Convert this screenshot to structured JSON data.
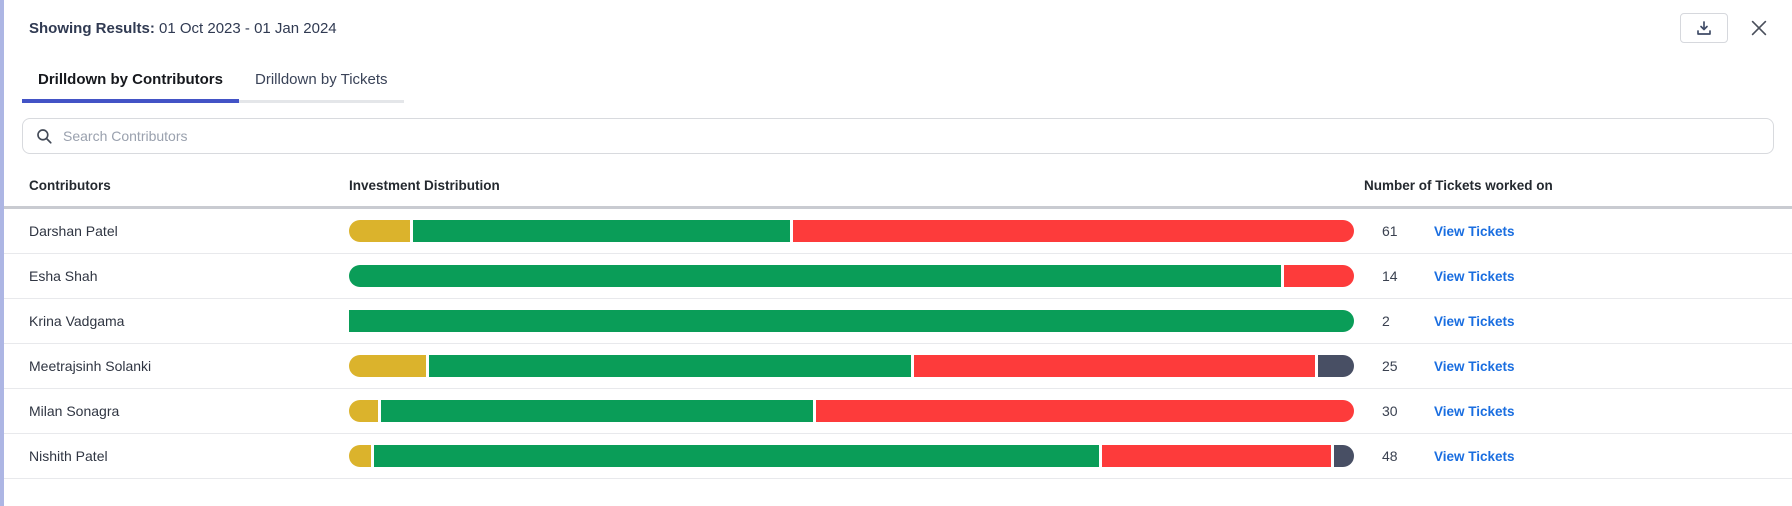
{
  "header": {
    "label": "Showing Results:",
    "value": "01 Oct 2023 - 01 Jan 2024"
  },
  "tabs": [
    {
      "label": "Drilldown by Contributors",
      "active": true
    },
    {
      "label": "Drilldown by Tickets",
      "active": false
    }
  ],
  "search": {
    "placeholder": "Search Contributors",
    "icon": "search-icon"
  },
  "table": {
    "columns": [
      "Contributors",
      "Investment Distribution",
      "Number of Tickets worked on"
    ],
    "link_label": "View Tickets"
  },
  "icons": {
    "download": "download-icon",
    "close": "close-icon"
  },
  "colors": {
    "yellow": "#dbb32c",
    "green": "#0a9d58",
    "red": "#fd3b3b",
    "slate": "#484f64",
    "accent": "#4353c6",
    "link": "#1a6ee0",
    "left_stripe": "#adb6e4"
  },
  "rows": [
    {
      "name": "Darshan Patel",
      "tickets": "61",
      "segments": [
        {
          "color": "yellow",
          "pct": 6.1
        },
        {
          "color": "green",
          "pct": 37.6
        },
        {
          "color": "red",
          "pct": 55.9
        }
      ]
    },
    {
      "name": "Esha Shah",
      "tickets": "14",
      "segments": [
        {
          "color": "green",
          "pct": 92.6
        },
        {
          "color": "red",
          "pct": 7.0
        }
      ]
    },
    {
      "name": "Krina Vadgama",
      "tickets": "2",
      "segments": [
        {
          "color": "green",
          "pct": 100
        }
      ]
    },
    {
      "name": "Meetrajsinh Solanki",
      "tickets": "25",
      "segments": [
        {
          "color": "yellow",
          "pct": 7.6
        },
        {
          "color": "green",
          "pct": 47.7
        },
        {
          "color": "red",
          "pct": 39.7
        },
        {
          "color": "slate",
          "pct": 3.6
        }
      ]
    },
    {
      "name": "Milan Sonagra",
      "tickets": "30",
      "segments": [
        {
          "color": "yellow",
          "pct": 2.9
        },
        {
          "color": "green",
          "pct": 42.9
        },
        {
          "color": "red",
          "pct": 53.4
        }
      ]
    },
    {
      "name": "Nishith Patel",
      "tickets": "48",
      "segments": [
        {
          "color": "yellow",
          "pct": 2.2
        },
        {
          "color": "green",
          "pct": 72.1
        },
        {
          "color": "red",
          "pct": 22.8
        },
        {
          "color": "slate",
          "pct": 2.0
        }
      ]
    }
  ]
}
